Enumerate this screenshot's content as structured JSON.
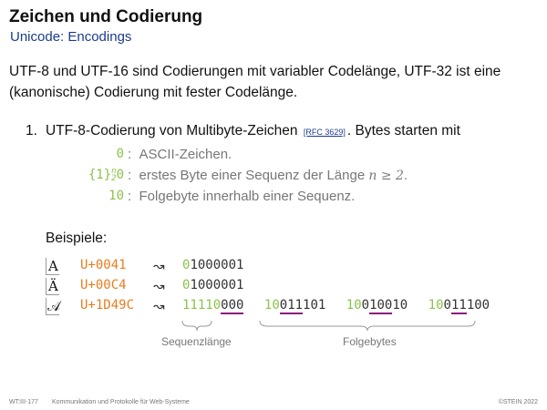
{
  "title": "Zeichen und Codierung",
  "subtitle": "Unicode: Encodings",
  "intro": "UTF-8 und UTF-16 sind Codierungen mit variabler Codelänge, UTF-32 ist eine (kanonische) Codierung mit fester Codelänge.",
  "item": {
    "number": "1.",
    "text_before": "UTF-8-Codierung von Multibyte-Zeichen",
    "ref": "[RFC 3629]",
    "text_after": ". Bytes starten mit"
  },
  "prefixes": [
    {
      "prefix": "0",
      "sep": ":",
      "desc": "ASCII-Zeichen."
    },
    {
      "prefix": "0",
      "sep": ":",
      "desc": "erstes Byte einer Sequenz der Länge",
      "math": "n ≥ 2",
      "tail": "."
    },
    {
      "prefix": "10",
      "sep": ":",
      "desc": "Folgebyte innerhalb einer Sequenz."
    }
  ],
  "set_notation": {
    "open": "{1}",
    "sup": "n",
    "sub": "2"
  },
  "beispiele_label": "Beispiele:",
  "examples": [
    {
      "glyph": "A",
      "codepoint": "U+0041",
      "arrow": "↝",
      "lead": "0",
      "rest": "1000001"
    },
    {
      "glyph": "Ä",
      "codepoint": "U+00C4",
      "arrow": "↝",
      "lead": "0",
      "rest": "1000001"
    },
    {
      "glyph": "𝒜",
      "codepoint": "U+1D49C",
      "arrow": "↝"
    }
  ],
  "bytes4": [
    {
      "prefix": "1111",
      "mid": "0",
      "u": "000",
      "rest": ""
    },
    {
      "prefix": "10",
      "pre": "0",
      "u": "11",
      "rest": "101"
    },
    {
      "prefix": "10",
      "pre": "0",
      "u": "100",
      "rest": "10"
    },
    {
      "prefix": "10",
      "pre": "0",
      "u": "11",
      "rest": "100"
    }
  ],
  "sequenzlaenge_label": "Sequenzlänge",
  "folgebytes_label": "Folgebytes",
  "footer": {
    "left": "WT:III-177",
    "middle": "Kommunikation und Protokolle für Web-Systeme",
    "right": "©STEIN 2022"
  }
}
